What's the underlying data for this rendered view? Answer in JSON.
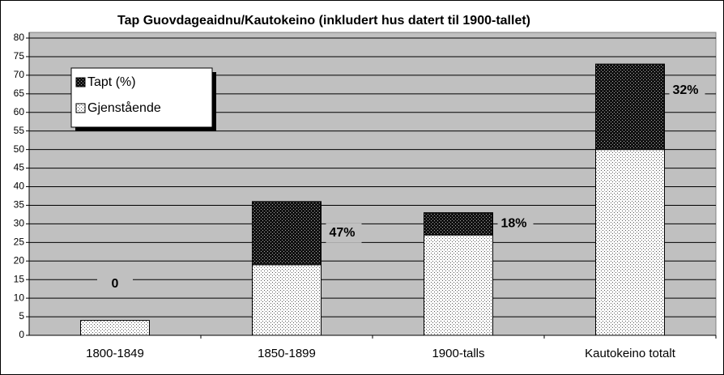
{
  "chart_data": {
    "type": "stacked_bar",
    "title": "Tap Guovdageaidnu/Kautokeino (inkludert hus datert til 1900-tallet)",
    "categories": [
      "1800-1849",
      "1850-1899",
      "1900-talls",
      "Kautokeino totalt"
    ],
    "series": [
      {
        "name": "Gjenstående",
        "color": "#ffffff",
        "values": [
          4,
          19,
          27,
          50
        ]
      },
      {
        "name": "Tapt (%)",
        "color": "#000000",
        "values": [
          0,
          17,
          6,
          23
        ]
      }
    ],
    "annotations": [
      "0",
      "47%",
      "18%",
      "32%"
    ],
    "ylim": [
      0,
      80
    ],
    "yticks": [
      0,
      5,
      10,
      15,
      20,
      25,
      30,
      35,
      40,
      45,
      50,
      55,
      60,
      65,
      70,
      75,
      80
    ],
    "grid": true,
    "legend": "upper left"
  }
}
